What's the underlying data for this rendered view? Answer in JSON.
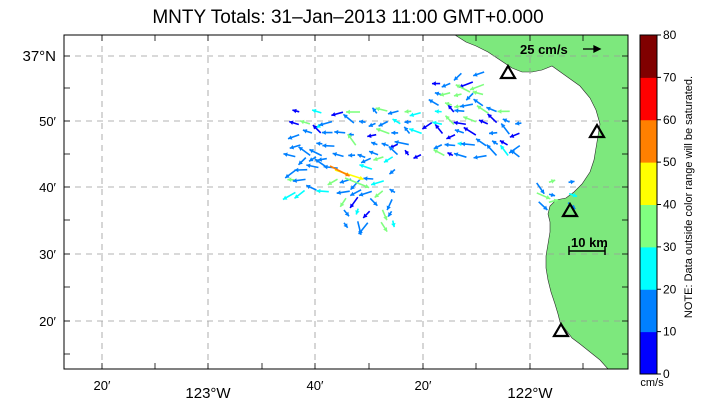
{
  "title": "MNTY Totals: 31–Jan–2013 11:00 GMT+0.000",
  "y_axis_labels": [
    "37°N",
    "50′",
    "40′",
    "30′",
    "20′"
  ],
  "x_axis_labels": {
    "minor": [
      "20′",
      "40′",
      "20′"
    ],
    "major": [
      "123°W",
      "122°W"
    ]
  },
  "reference_vector_label": "25 cm/s",
  "scale_bar_label": "10 km",
  "colorbar": {
    "ticks": [
      "80",
      "70",
      "60",
      "50",
      "40",
      "30",
      "20",
      "10",
      "0"
    ],
    "unit": "cm/s",
    "note": "NOTE: Data outside color range will be saturated.",
    "colors": [
      "#0000ff",
      "#0080ff",
      "#00ffff",
      "#80ff80",
      "#ffff00",
      "#ff8000",
      "#ff0000",
      "#800000"
    ]
  },
  "colors": {
    "land": "#7de87d",
    "ocean": "#ffffff",
    "grid": "#999999",
    "station_marker": "#000000"
  },
  "stations_count_shown": 4
}
